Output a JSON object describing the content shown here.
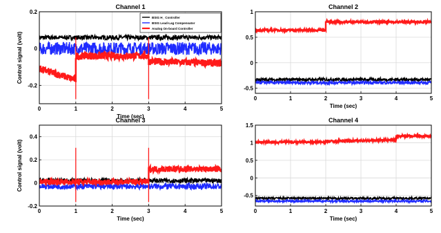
{
  "colors": {
    "black": "#000000",
    "blue": "#1f2bff",
    "red": "#ff1a1a",
    "grid": "#d9d9d9"
  },
  "chart_data": [
    {
      "type": "line",
      "title": "Channel 1",
      "xlabel": "Time (sec)",
      "ylabel": "Control signal (volt)",
      "xlim": [
        0,
        5
      ],
      "ylim": [
        -0.3,
        0.2
      ],
      "xticks": [
        "0",
        "1",
        "2",
        "3",
        "4",
        "5"
      ],
      "yticks": [
        "-0.2",
        "0",
        "0.2"
      ],
      "grid": true,
      "legend": {
        "position": "top-right",
        "entries": [
          "BSIG H_ Controller",
          "BSIG Lead-Lag Compensator",
          "Analog On-board Controller"
        ]
      },
      "series": [
        {
          "name": "BSIG H_ Controller",
          "color": "black",
          "segments": [
            {
              "t0": 0,
              "t1": 5,
              "v0": 0.06,
              "v1": 0.06,
              "noise": 0.012
            }
          ]
        },
        {
          "name": "BSIG Lead-Lag Compensator",
          "color": "blue",
          "segments": [
            {
              "t0": 0,
              "t1": 5,
              "v0": 0.0,
              "v1": 0.0,
              "noise": 0.035
            }
          ]
        },
        {
          "name": "Analog On-board Controller",
          "color": "red",
          "segments": [
            {
              "t0": 0,
              "t1": 1,
              "v0": -0.11,
              "v1": -0.17,
              "noise": 0.02
            },
            {
              "t0": 1,
              "t1": 3,
              "v0": -0.04,
              "v1": -0.04,
              "noise": 0.02
            },
            {
              "t0": 3,
              "t1": 5,
              "v0": -0.07,
              "v1": -0.08,
              "noise": 0.02
            }
          ]
        }
      ]
    },
    {
      "type": "line",
      "title": "Channel 2",
      "xlabel": "Time (sec)",
      "ylabel": "",
      "xlim": [
        0,
        5
      ],
      "ylim": [
        -0.6,
        1.0
      ],
      "xticks": [
        "0",
        "1",
        "2",
        "3",
        "4",
        "5"
      ],
      "yticks": [
        "-0.5",
        "0",
        "0.5",
        "1"
      ],
      "grid": true,
      "series": [
        {
          "name": "",
          "color": "black",
          "segments": [
            {
              "t0": 0,
              "t1": 5,
              "v0": -0.33,
              "v1": -0.33,
              "noise": 0.03
            }
          ]
        },
        {
          "name": "",
          "color": "blue",
          "segments": [
            {
              "t0": 0,
              "t1": 5,
              "v0": -0.39,
              "v1": -0.39,
              "noise": 0.03
            }
          ]
        },
        {
          "name": "",
          "color": "red",
          "segments": [
            {
              "t0": 0,
              "t1": 2,
              "v0": 0.64,
              "v1": 0.64,
              "noise": 0.02
            },
            {
              "t0": 2,
              "t1": 5,
              "v0": 0.8,
              "v1": 0.8,
              "noise": 0.02
            }
          ]
        }
      ]
    },
    {
      "type": "line",
      "title": "Channel 3",
      "xlabel": "Time (sec)",
      "ylabel": "Control signal (volt)",
      "xlim": [
        0,
        5
      ],
      "ylim": [
        -0.2,
        0.5
      ],
      "xticks": [
        "0",
        "1",
        "2",
        "3",
        "4",
        "5"
      ],
      "yticks": [
        "-0.2",
        "0",
        "0.2",
        "0.4"
      ],
      "grid": true,
      "series": [
        {
          "name": "",
          "color": "black",
          "segments": [
            {
              "t0": 0,
              "t1": 5,
              "v0": 0.02,
              "v1": 0.02,
              "noise": 0.02
            }
          ]
        },
        {
          "name": "",
          "color": "blue",
          "segments": [
            {
              "t0": 0,
              "t1": 5,
              "v0": -0.03,
              "v1": -0.03,
              "noise": 0.025
            }
          ]
        },
        {
          "name": "",
          "color": "red",
          "segments": [
            {
              "t0": 0,
              "t1": 3,
              "v0": 0.01,
              "v1": 0.01,
              "noise": 0.025
            },
            {
              "t0": 3,
              "t1": 5,
              "v0": 0.12,
              "v1": 0.12,
              "noise": 0.025
            }
          ]
        }
      ]
    },
    {
      "type": "line",
      "title": "Channel 4",
      "xlabel": "Time (sec)",
      "ylabel": "",
      "xlim": [
        0,
        5
      ],
      "ylim": [
        -0.8,
        1.5
      ],
      "xticks": [
        "0",
        "1",
        "2",
        "3",
        "4",
        "5"
      ],
      "yticks": [
        "-0.5",
        "0",
        "0.5",
        "1",
        "1.5"
      ],
      "grid": true,
      "series": [
        {
          "name": "",
          "color": "black",
          "segments": [
            {
              "t0": 0,
              "t1": 5,
              "v0": -0.58,
              "v1": -0.58,
              "noise": 0.03
            }
          ]
        },
        {
          "name": "",
          "color": "blue",
          "segments": [
            {
              "t0": 0,
              "t1": 5,
              "v0": -0.66,
              "v1": -0.66,
              "noise": 0.03
            }
          ]
        },
        {
          "name": "",
          "color": "red",
          "segments": [
            {
              "t0": 0,
              "t1": 2,
              "v0": 1.02,
              "v1": 1.02,
              "noise": 0.03
            },
            {
              "t0": 2,
              "t1": 4,
              "v0": 1.04,
              "v1": 1.08,
              "noise": 0.03
            },
            {
              "t0": 4,
              "t1": 5,
              "v0": 1.19,
              "v1": 1.19,
              "noise": 0.03
            }
          ]
        }
      ]
    }
  ]
}
